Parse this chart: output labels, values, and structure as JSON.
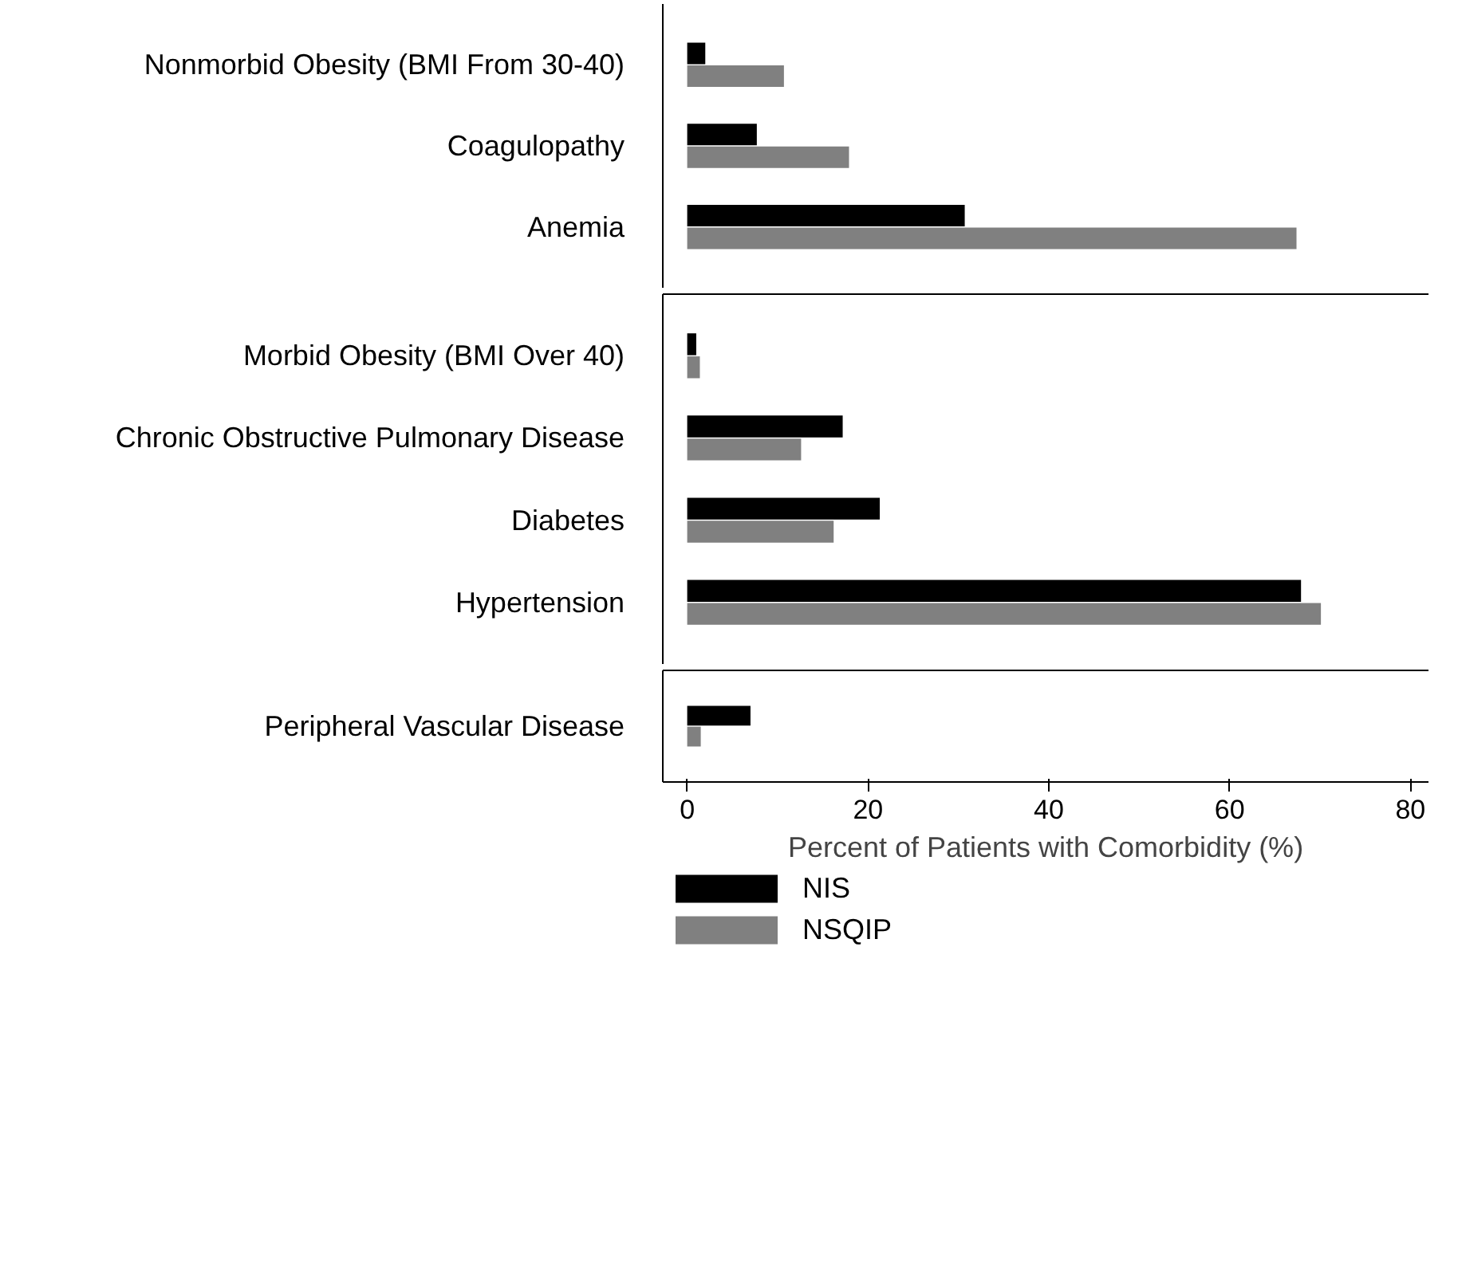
{
  "chart_data": [
    {
      "type": "bar",
      "orientation": "horizontal",
      "categories": [
        "Nonmorbid Obesity (BMI From 30-40)",
        "Coagulopathy",
        "Anemia"
      ],
      "series": [
        {
          "color": "#000000",
          "values": [
            2.0,
            7.7,
            30.7
          ]
        },
        {
          "color": "#808080",
          "values": [
            10.7,
            17.9,
            67.4
          ]
        }
      ],
      "xlim": [
        -2.7,
        82
      ],
      "xticks": [
        0,
        20,
        40,
        60,
        80
      ],
      "tick_labels": "y"
    },
    {
      "type": "bar",
      "orientation": "horizontal",
      "categories": [
        "Morbid Obesity (BMI Over 40)",
        "Chronic Obstructive Pulmonary Disease",
        "Diabetes",
        "Hypertension"
      ],
      "series": [
        {
          "color": "#000000",
          "values": [
            1.0,
            17.2,
            21.3,
            67.9
          ]
        },
        {
          "color": "#808080",
          "values": [
            1.4,
            12.6,
            16.2,
            70.1
          ]
        }
      ],
      "xlim": [
        -2.7,
        82
      ],
      "xticks": [
        0,
        20,
        40,
        60,
        80
      ],
      "tick_labels": "y"
    },
    {
      "type": "bar",
      "orientation": "horizontal",
      "categories": [
        "Peripheral Vascular Disease"
      ],
      "series": [
        {
          "name": "NIS",
          "color": "#000000",
          "values": [
            7.0
          ]
        },
        {
          "name": "NSQIP",
          "color": "#808080",
          "values": [
            1.5
          ]
        }
      ],
      "xlim": [
        -2.7,
        82
      ],
      "xticks": [
        0,
        20,
        40,
        60,
        80
      ],
      "xlabel": "Percent of Patients with Comorbidity (%)",
      "legend": "bottom"
    }
  ]
}
